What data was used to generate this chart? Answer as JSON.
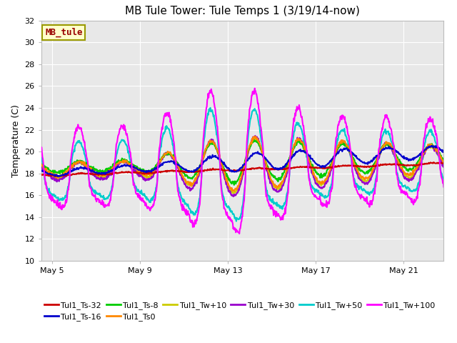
{
  "title": "MB Tule Tower: Tule Temps 1 (3/19/14-now)",
  "ylabel": "Temperature (C)",
  "xlim_days": [
    4.5,
    22.8
  ],
  "ylim": [
    10,
    32
  ],
  "yticks": [
    10,
    12,
    14,
    16,
    18,
    20,
    22,
    24,
    26,
    28,
    30,
    32
  ],
  "xtick_labels": [
    "May 5",
    "May 9",
    "May 13",
    "May 17",
    "May 21"
  ],
  "xtick_positions": [
    5,
    9,
    13,
    17,
    21
  ],
  "bg_color": "#e8e8e8",
  "fig_bg_color": "#ffffff",
  "grid_color": "#ffffff",
  "series": {
    "Tul1_Ts-32": {
      "color": "#cc0000",
      "lw": 1.5,
      "zorder": 5
    },
    "Tul1_Ts-16": {
      "color": "#0000cc",
      "lw": 1.5,
      "zorder": 5
    },
    "Tul1_Ts-8": {
      "color": "#00cc00",
      "lw": 1.5,
      "zorder": 4
    },
    "Tul1_Ts0": {
      "color": "#ff8800",
      "lw": 1.5,
      "zorder": 4
    },
    "Tul1_Tw+10": {
      "color": "#cccc00",
      "lw": 1.5,
      "zorder": 3
    },
    "Tul1_Tw+30": {
      "color": "#9900cc",
      "lw": 1.5,
      "zorder": 3
    },
    "Tul1_Tw+50": {
      "color": "#00cccc",
      "lw": 1.5,
      "zorder": 3
    },
    "Tul1_Tw+100": {
      "color": "#ff00ff",
      "lw": 1.5,
      "zorder": 6
    }
  },
  "legend_box": {
    "facecolor": "#ffffcc",
    "edgecolor": "#999900",
    "label": "MB_tule",
    "text_color": "#990000"
  },
  "title_fontsize": 11,
  "axis_fontsize": 9,
  "tick_fontsize": 8,
  "legend_fontsize": 8
}
